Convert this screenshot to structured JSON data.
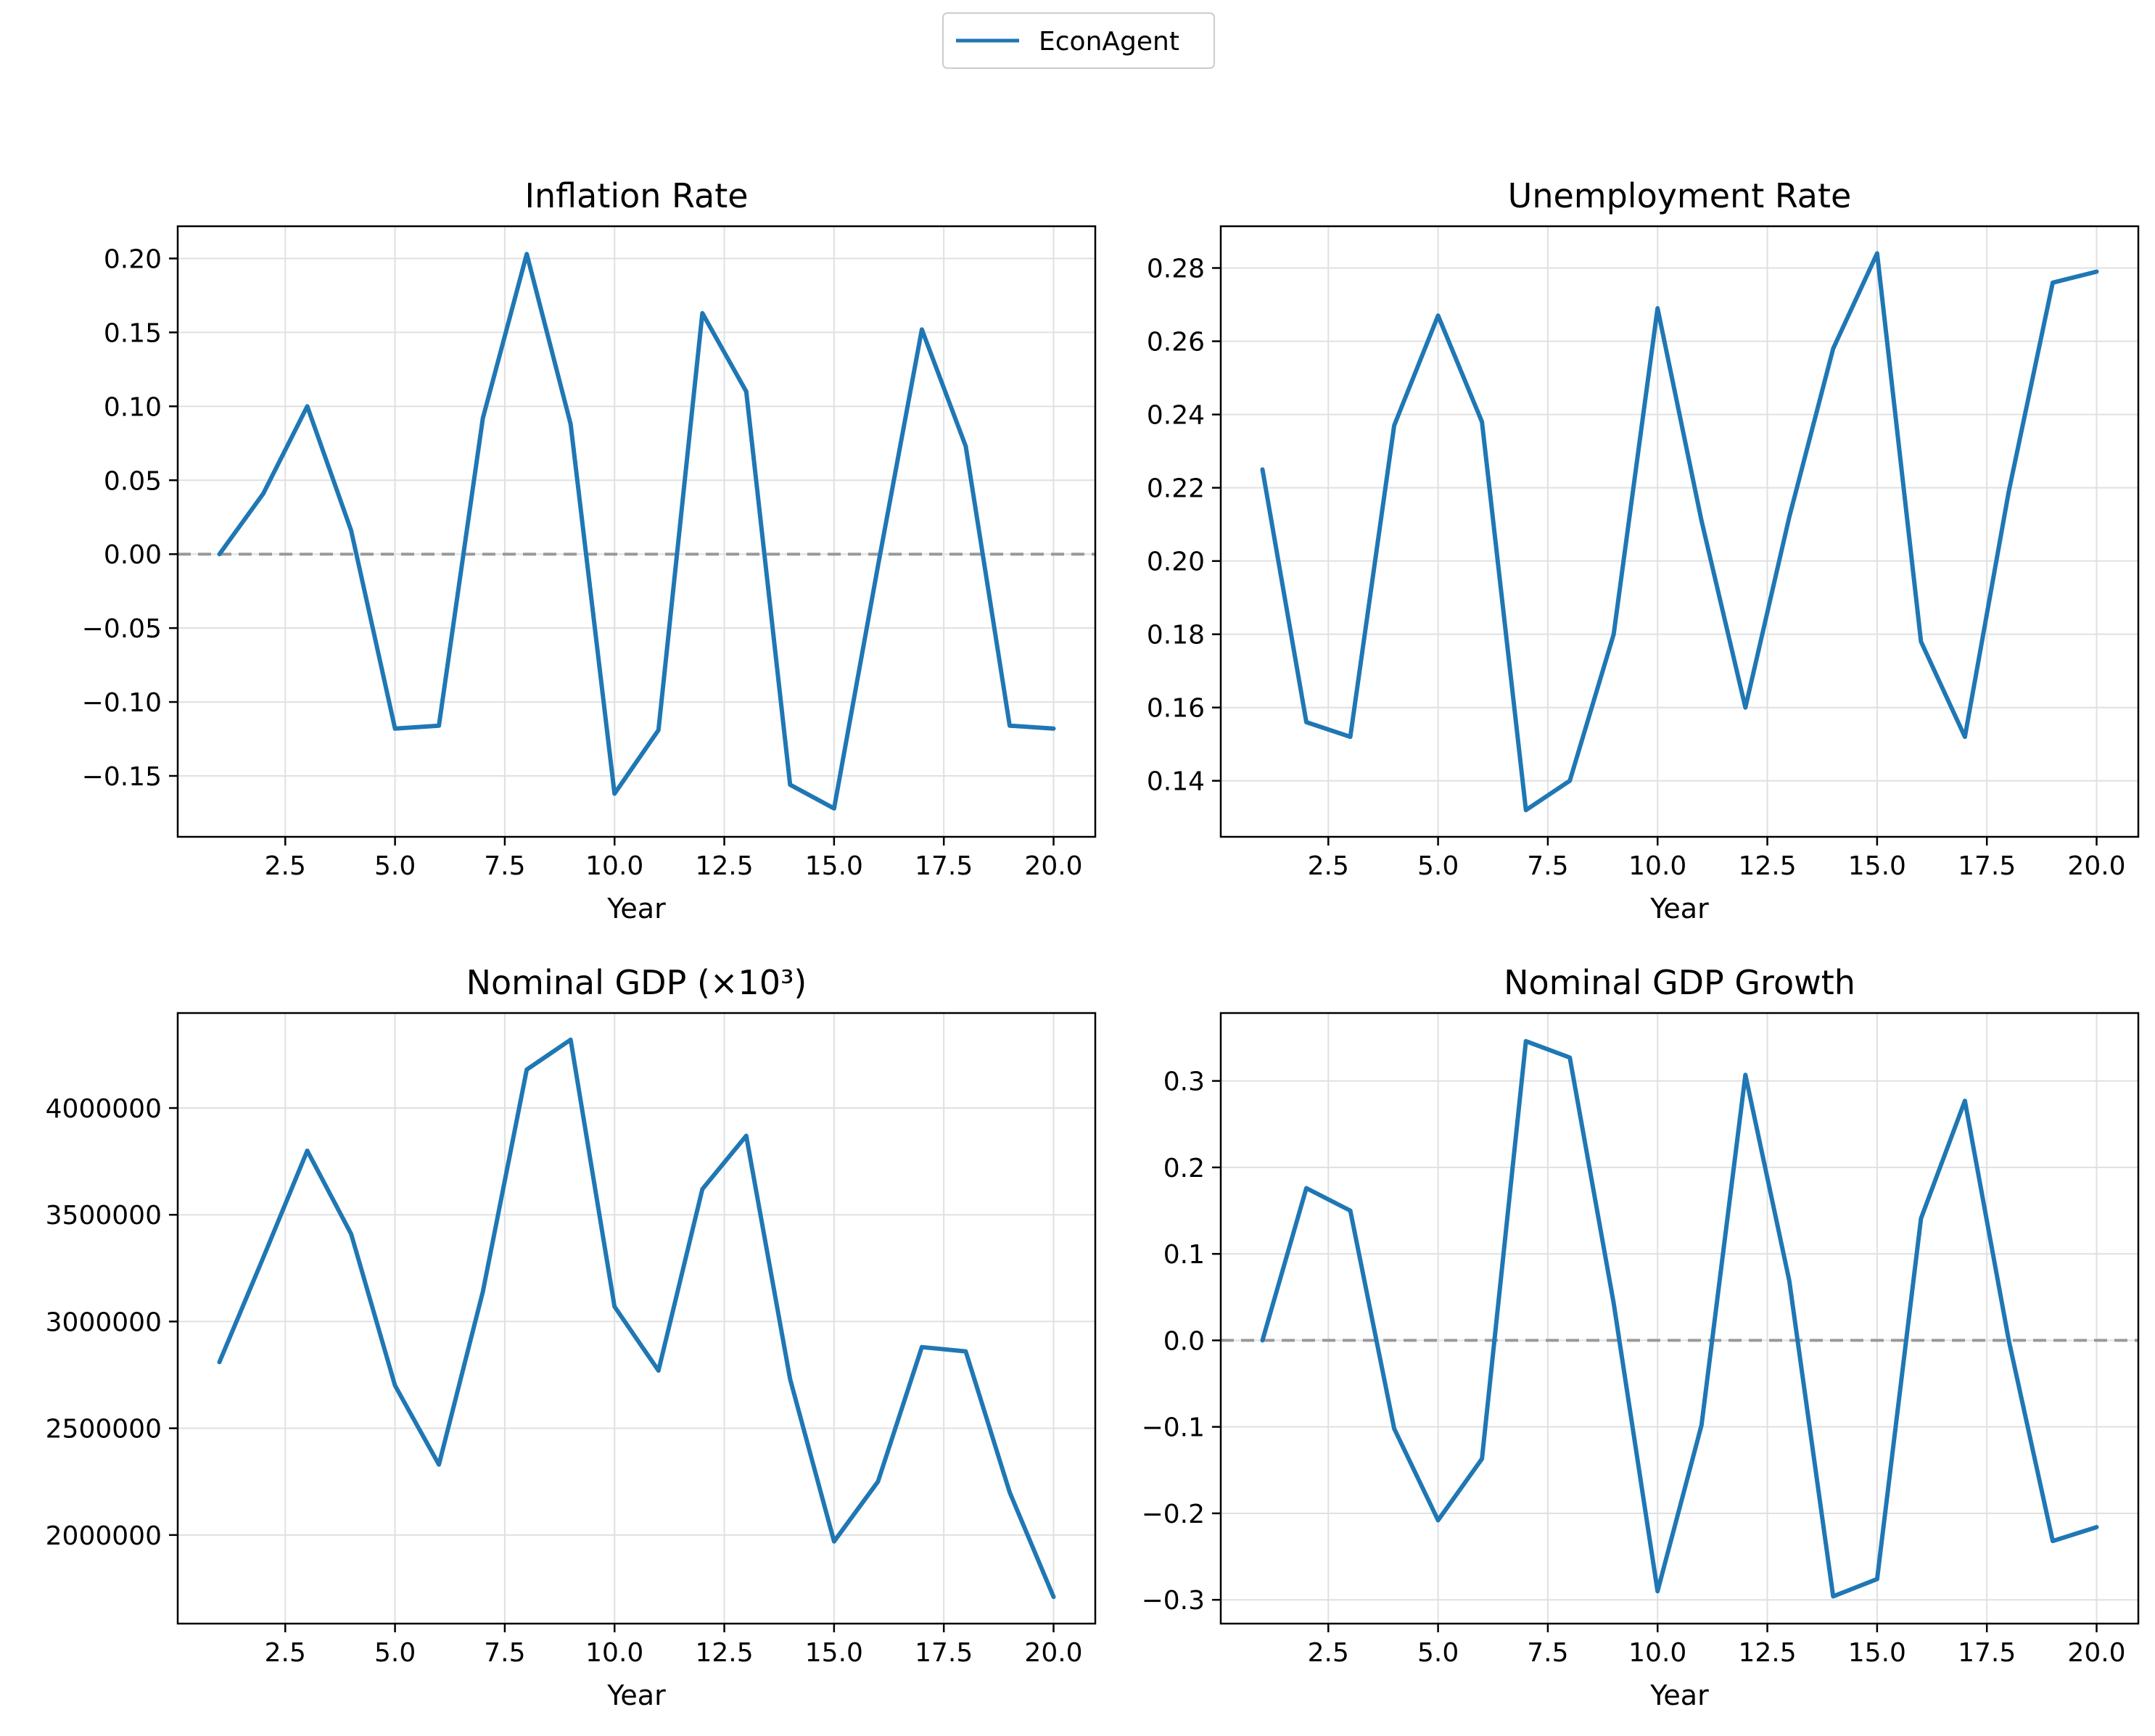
{
  "legend": {
    "label": "EconAgent",
    "position": "top-center"
  },
  "colors": {
    "line": "#1f77b4",
    "zero_line": "#999999",
    "grid": "#e0e0e0",
    "axis": "#000000"
  },
  "chart_data": [
    {
      "type": "line",
      "title": "Inflation Rate",
      "xlabel": "Year",
      "ylabel": "",
      "xlim": [
        0.05,
        20.95
      ],
      "ylim": [
        -0.1912,
        0.2218
      ],
      "xticks": [
        2.5,
        5.0,
        7.5,
        10.0,
        12.5,
        15.0,
        17.5,
        20.0
      ],
      "xtick_labels": [
        "2.5",
        "5.0",
        "7.5",
        "10.0",
        "12.5",
        "15.0",
        "17.5",
        "20.0"
      ],
      "yticks": [
        0.2,
        0.15,
        0.1,
        0.05,
        0.0,
        -0.05,
        -0.1,
        -0.15
      ],
      "ytick_labels": [
        "0.20",
        "0.15",
        "0.10",
        "0.05",
        "0.00",
        "−0.05",
        "−0.10",
        "−0.15"
      ],
      "zero_line": true,
      "grid": true,
      "x": [
        1,
        2,
        3,
        4,
        5,
        6,
        7,
        8,
        9,
        10,
        11,
        12,
        13,
        14,
        15,
        16,
        17,
        18,
        19,
        20
      ],
      "series": [
        {
          "name": "EconAgent",
          "values": [
            0.0,
            0.041,
            0.1,
            0.016,
            -0.118,
            -0.116,
            0.092,
            0.203,
            0.088,
            -0.162,
            -0.119,
            0.163,
            0.11,
            -0.156,
            -0.172,
            -0.008,
            0.152,
            0.073,
            -0.116,
            -0.118
          ]
        }
      ]
    },
    {
      "type": "line",
      "title": "Unemployment Rate",
      "xlabel": "Year",
      "ylabel": "",
      "xlim": [
        0.05,
        20.95
      ],
      "ylim": [
        0.1247,
        0.2914
      ],
      "xticks": [
        2.5,
        5.0,
        7.5,
        10.0,
        12.5,
        15.0,
        17.5,
        20.0
      ],
      "xtick_labels": [
        "2.5",
        "5.0",
        "7.5",
        "10.0",
        "12.5",
        "15.0",
        "17.5",
        "20.0"
      ],
      "yticks": [
        0.28,
        0.26,
        0.24,
        0.22,
        0.2,
        0.18,
        0.16,
        0.14
      ],
      "ytick_labels": [
        "0.28",
        "0.26",
        "0.24",
        "0.22",
        "0.20",
        "0.18",
        "0.16",
        "0.14"
      ],
      "zero_line": false,
      "grid": true,
      "x": [
        1,
        2,
        3,
        4,
        5,
        6,
        7,
        8,
        9,
        10,
        11,
        12,
        13,
        14,
        15,
        16,
        17,
        18,
        19,
        20
      ],
      "series": [
        {
          "name": "EconAgent",
          "values": [
            0.225,
            0.156,
            0.152,
            0.237,
            0.267,
            0.238,
            0.132,
            0.14,
            0.18,
            0.269,
            0.211,
            0.16,
            0.212,
            0.258,
            0.284,
            0.178,
            0.152,
            0.219,
            0.276,
            0.279
          ]
        }
      ]
    },
    {
      "type": "line",
      "title": "Nominal GDP (×10³)",
      "xlabel": "Year",
      "ylabel": "",
      "xlim": [
        0.05,
        20.95
      ],
      "ylim": [
        1585000,
        4445000
      ],
      "xticks": [
        2.5,
        5.0,
        7.5,
        10.0,
        12.5,
        15.0,
        17.5,
        20.0
      ],
      "xtick_labels": [
        "2.5",
        "5.0",
        "7.5",
        "10.0",
        "12.5",
        "15.0",
        "17.5",
        "20.0"
      ],
      "yticks": [
        4000000,
        3500000,
        3000000,
        2500000,
        2000000
      ],
      "ytick_labels": [
        "4000000",
        "3500000",
        "3000000",
        "2500000",
        "2000000"
      ],
      "zero_line": false,
      "grid": true,
      "x": [
        1,
        2,
        3,
        4,
        5,
        6,
        7,
        8,
        9,
        10,
        11,
        12,
        13,
        14,
        15,
        16,
        17,
        18,
        19,
        20
      ],
      "series": [
        {
          "name": "EconAgent",
          "values": [
            2810000,
            3300000,
            3800000,
            3410000,
            2700000,
            2330000,
            3140000,
            4180000,
            4320000,
            3070000,
            2770000,
            3620000,
            3870000,
            2730000,
            1970000,
            2250000,
            2880000,
            2860000,
            2200000,
            1710000
          ]
        }
      ]
    },
    {
      "type": "line",
      "title": "Nominal GDP Growth",
      "xlabel": "Year",
      "ylabel": "",
      "xlim": [
        0.05,
        20.95
      ],
      "ylim": [
        -0.3275,
        0.3785
      ],
      "xticks": [
        2.5,
        5.0,
        7.5,
        10.0,
        12.5,
        15.0,
        17.5,
        20.0
      ],
      "xtick_labels": [
        "2.5",
        "5.0",
        "7.5",
        "10.0",
        "12.5",
        "15.0",
        "17.5",
        "20.0"
      ],
      "yticks": [
        0.3,
        0.2,
        0.1,
        0.0,
        -0.1,
        -0.2,
        -0.3
      ],
      "ytick_labels": [
        "0.3",
        "0.2",
        "0.1",
        "0.0",
        "−0.1",
        "−0.2",
        "−0.3"
      ],
      "zero_line": true,
      "grid": true,
      "x": [
        1,
        2,
        3,
        4,
        5,
        6,
        7,
        8,
        9,
        10,
        11,
        12,
        13,
        14,
        15,
        16,
        17,
        18,
        19,
        20
      ],
      "series": [
        {
          "name": "EconAgent",
          "values": [
            0.0,
            0.176,
            0.15,
            -0.102,
            -0.208,
            -0.137,
            0.346,
            0.327,
            0.043,
            -0.29,
            -0.098,
            0.307,
            0.069,
            -0.296,
            -0.276,
            0.141,
            0.277,
            0.0,
            -0.232,
            -0.216
          ]
        }
      ]
    }
  ]
}
